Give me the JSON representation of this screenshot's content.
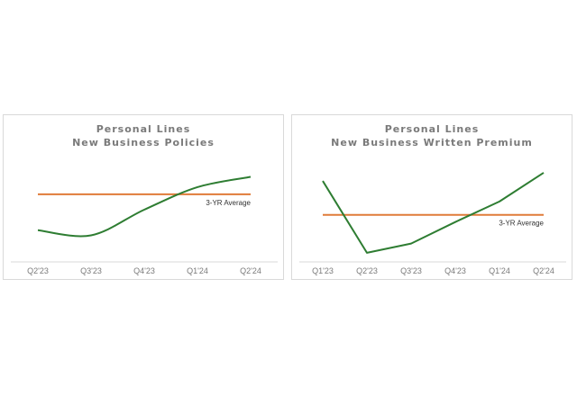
{
  "chart_data": [
    {
      "type": "line",
      "title": [
        "Personal Lines",
        "New Business Policies"
      ],
      "categories": [
        "Q2'23",
        "Q3'23",
        "Q4'23",
        "Q1'24",
        "Q2'24"
      ],
      "series": [
        {
          "values": [
            0.3,
            0.25,
            0.5,
            0.72,
            0.82
          ],
          "color": "#2e7d32"
        },
        {
          "name": "3-YR Average",
          "values": [
            0.65,
            0.65,
            0.65,
            0.65,
            0.65
          ],
          "color": "#e07b39"
        }
      ],
      "ylim": [
        0,
        1
      ],
      "grid": false,
      "legend": "inline-right"
    },
    {
      "type": "line",
      "title": [
        "Personal Lines",
        "New Business Written Premium"
      ],
      "categories": [
        "Q1'23",
        "Q2'23",
        "Q3'23",
        "Q4'23",
        "Q1'24",
        "Q2'24"
      ],
      "series": [
        {
          "values": [
            0.78,
            0.08,
            0.17,
            0.38,
            0.58,
            0.86
          ],
          "color": "#2e7d32"
        },
        {
          "name": "3-YR Average",
          "values": [
            0.45,
            0.45,
            0.45,
            0.45,
            0.45,
            0.45
          ],
          "color": "#e07b39"
        }
      ],
      "ylim": [
        0,
        1
      ],
      "grid": false,
      "legend": "inline-right"
    }
  ]
}
